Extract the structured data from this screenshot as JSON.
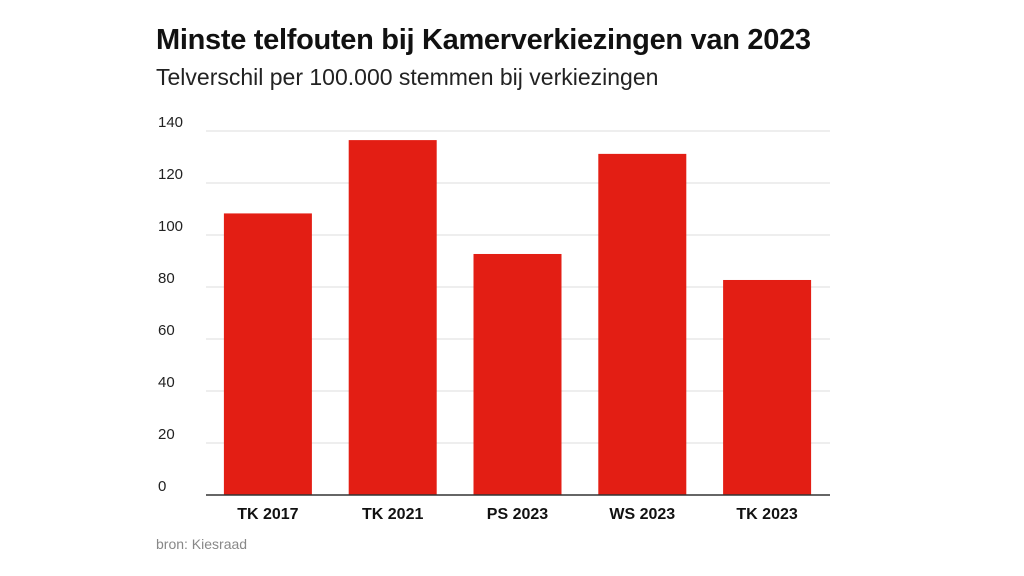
{
  "chart_data": {
    "type": "bar",
    "title": "Minste telfouten bij Kamerverkiezingen van 2023",
    "subtitle": "Telverschil per 100.000 stemmen bij verkiezingen",
    "categories": [
      "TK 2017",
      "TK 2021",
      "PS 2023",
      "WS 2023",
      "TK 2023"
    ],
    "values": [
      108.3,
      136.5,
      92.7,
      131.2,
      82.7
    ],
    "xlabel": "",
    "ylabel": "",
    "ylim": [
      0,
      140
    ],
    "yticks": [
      "0",
      "20",
      "40",
      "60",
      "80",
      "100",
      "120",
      "140"
    ],
    "grid": true,
    "bar_color": "#e31e14",
    "source": "bron: Kiesraad"
  }
}
